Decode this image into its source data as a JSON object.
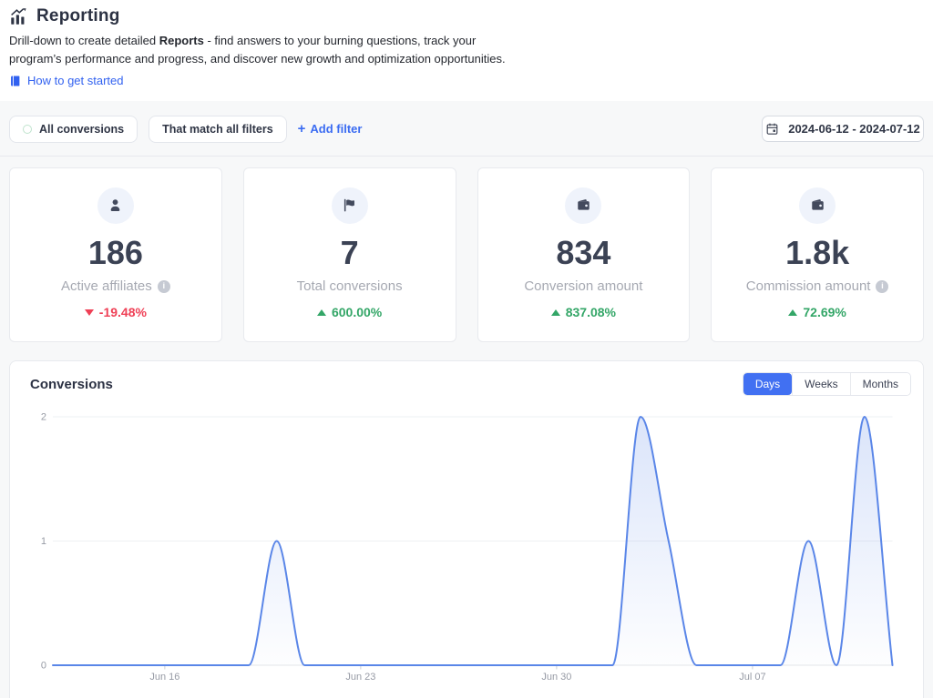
{
  "header": {
    "title": "Reporting",
    "description_prefix": "Drill-down to create detailed ",
    "description_bold": "Reports",
    "description_suffix": " - find answers to your burning questions, track your program’s performance and progress, and discover new growth and optimization opportunities.",
    "link_label": "How to get started"
  },
  "filter_bar": {
    "scope_label": "All conversions",
    "match_label": "That match all filters",
    "add_filter_plus": "+",
    "add_filter_label": "Add filter",
    "date_range": "2024-06-12 - 2024-07-12"
  },
  "stats": [
    {
      "id": "active-affiliates",
      "icon": "person-icon",
      "value": "186",
      "label": "Active affiliates",
      "has_info": true,
      "delta": "-19.48%",
      "direction": "down"
    },
    {
      "id": "total-conversions",
      "icon": "flag-icon",
      "value": "7",
      "label": "Total conversions",
      "has_info": false,
      "delta": "600.00%",
      "direction": "up"
    },
    {
      "id": "conversion-amount",
      "icon": "wallet-icon",
      "value": "834",
      "label": "Conversion amount",
      "has_info": false,
      "delta": "837.08%",
      "direction": "up"
    },
    {
      "id": "commission-amount",
      "icon": "wallet-icon",
      "value": "1.8k",
      "label": "Commission amount",
      "has_info": true,
      "delta": "72.69%",
      "direction": "up"
    }
  ],
  "chart_panel": {
    "title": "Conversions",
    "range_options": [
      "Days",
      "Weeks",
      "Months"
    ],
    "active_option": "Days"
  },
  "chart_data": {
    "type": "area",
    "title": "Conversions",
    "x": [
      "Jun 12",
      "Jun 13",
      "Jun 14",
      "Jun 15",
      "Jun 16",
      "Jun 17",
      "Jun 18",
      "Jun 19",
      "Jun 20",
      "Jun 21",
      "Jun 22",
      "Jun 23",
      "Jun 24",
      "Jun 25",
      "Jun 26",
      "Jun 27",
      "Jun 28",
      "Jun 29",
      "Jun 30",
      "Jul 01",
      "Jul 02",
      "Jul 03",
      "Jul 04",
      "Jul 05",
      "Jul 06",
      "Jul 07",
      "Jul 08",
      "Jul 09",
      "Jul 10",
      "Jul 11",
      "Jul 12"
    ],
    "values": [
      0,
      0,
      0,
      0,
      0,
      0,
      0,
      0,
      1,
      0,
      0,
      0,
      0,
      0,
      0,
      0,
      0,
      0,
      0,
      0,
      0,
      2,
      1,
      0,
      0,
      0,
      0,
      1,
      0,
      2,
      0
    ],
    "ylim": [
      0,
      2
    ],
    "yticks": [
      0,
      1,
      2
    ],
    "xtick_labels": [
      "Jun 16",
      "Jun 23",
      "Jun 30",
      "Jul 07"
    ],
    "xtick_indices": [
      4,
      11,
      18,
      25
    ],
    "grid": true,
    "legend": "none",
    "smoothing": "monotone",
    "line_color": "#5a86e8",
    "fill_color": "rgba(90,134,232,0.22)"
  },
  "colors": {
    "accent_blue": "#3161f0",
    "toggle_active_blue": "#4170f2",
    "line_blue": "#5a86e8",
    "positive_green": "#33a667",
    "negative_red": "#ef4056",
    "page_bg": "#f7f8f9",
    "card_border": "#e8eaee",
    "text_dark": "#2d3345",
    "text_gray": "#a6a9b2"
  }
}
